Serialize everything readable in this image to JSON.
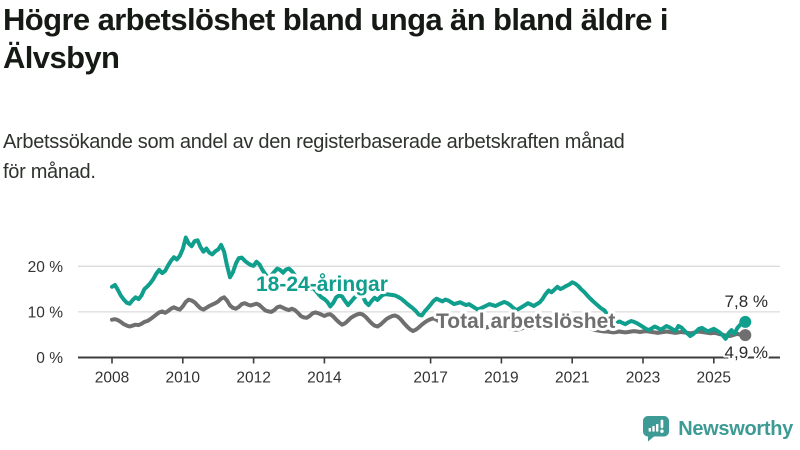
{
  "header": {
    "title_lines": [
      "Högre arbetslöshet bland unga än bland äldre i",
      "Älvsbyn"
    ],
    "subtitle_lines": [
      "Arbetssökande som andel av den registerbaserade arbetskraften månad",
      "för månad."
    ]
  },
  "footer": {
    "brand": "Newsworthy",
    "brand_color": "#3d9a94",
    "logo_icon": "speech-bubble-bar-chart-exclamation"
  },
  "chart_data": {
    "type": "line",
    "unit": "%",
    "frequency": "monthly",
    "x_start": "2008-01",
    "x_end": "2025-11",
    "grid": true,
    "y_axis": {
      "range": [
        0,
        28
      ],
      "ticks": [
        {
          "value": 0,
          "label": "0 %"
        },
        {
          "value": 10,
          "label": "10 %"
        },
        {
          "value": 20,
          "label": "20 %"
        }
      ]
    },
    "x_axis": {
      "tick_labels": [
        "2008",
        "2010",
        "2012",
        "2014",
        "2017",
        "2019",
        "2021",
        "2023",
        "2025"
      ]
    },
    "series": [
      {
        "id": "youth",
        "name": "18-24-åringar",
        "color": "#109e8d",
        "end_label": "7,8 %",
        "end_value": 7.8,
        "values": [
          15.5,
          15.9,
          14.8,
          13.6,
          12.7,
          12.0,
          11.8,
          12.6,
          13.2,
          12.8,
          13.6,
          15.0,
          15.6,
          16.3,
          17.2,
          18.4,
          19.2,
          18.5,
          19.0,
          20.2,
          21.2,
          22.0,
          21.5,
          22.3,
          23.8,
          26.3,
          25.0,
          24.4,
          25.5,
          25.7,
          24.2,
          23.2,
          23.9,
          23.0,
          22.6,
          23.3,
          23.7,
          24.7,
          23.2,
          20.2,
          17.6,
          18.7,
          20.6,
          21.8,
          21.9,
          21.2,
          20.7,
          20.3,
          20.1,
          21.0,
          20.4,
          19.2,
          18.2,
          17.6,
          18.0,
          18.8,
          19.5,
          19.2,
          18.6,
          19.3,
          19.5,
          18.9,
          18.0,
          16.9,
          15.8,
          15.0,
          14.5,
          14.9,
          15.3,
          14.7,
          13.9,
          13.2,
          12.8,
          12.2,
          11.2,
          12.0,
          13.2,
          13.6,
          13.4,
          12.4,
          11.5,
          12.2,
          13.0,
          13.6,
          13.9,
          13.4,
          12.1,
          11.5,
          12.4,
          13.1,
          12.6,
          13.3,
          13.8,
          13.9,
          13.8,
          13.7,
          13.6,
          13.3,
          12.9,
          12.4,
          11.8,
          11.3,
          10.8,
          10.2,
          9.4,
          9.2,
          10.1,
          10.8,
          11.6,
          12.4,
          12.9,
          12.6,
          12.3,
          12.7,
          12.5,
          12.1,
          11.7,
          11.9,
          12.1,
          11.8,
          11.5,
          11.7,
          11.3,
          10.9,
          10.5,
          10.8,
          11.1,
          11.4,
          11.7,
          11.5,
          11.3,
          11.6,
          11.9,
          12.2,
          11.9,
          11.5,
          10.9,
          10.4,
          10.7,
          11.1,
          11.5,
          11.9,
          11.6,
          11.3,
          11.7,
          12.1,
          12.9,
          13.9,
          14.7,
          14.3,
          14.9,
          15.5,
          15.0,
          15.3,
          15.7,
          16.0,
          16.5,
          16.2,
          15.7,
          15.0,
          14.4,
          13.7,
          13.0,
          12.4,
          11.8,
          11.2,
          10.7,
          10.3,
          9.2,
          8.1,
          7.5,
          7.7,
          7.9,
          7.6,
          7.3,
          7.7,
          8.0,
          7.8,
          7.5,
          7.1,
          6.7,
          6.3,
          6.0,
          6.4,
          6.8,
          6.5,
          6.1,
          6.5,
          6.9,
          6.6,
          6.2,
          5.8,
          6.9,
          6.6,
          5.9,
          5.3,
          4.7,
          5.1,
          5.7,
          6.3,
          6.5,
          6.1,
          5.7,
          6.0,
          6.3,
          5.9,
          5.5,
          4.9,
          4.1,
          5.3,
          6.0,
          5.2,
          6.5,
          7.2,
          7.8
        ]
      },
      {
        "id": "total",
        "name": "Total arbetslöshet",
        "color": "#6f6f6f",
        "end_label": "4,9 %",
        "end_value": 4.9,
        "values": [
          8.3,
          8.4,
          8.2,
          7.8,
          7.3,
          7.0,
          6.8,
          7.0,
          7.2,
          7.1,
          7.4,
          7.8,
          8.0,
          8.4,
          8.9,
          9.4,
          9.9,
          10.1,
          9.8,
          10.2,
          10.7,
          11.0,
          10.7,
          10.5,
          11.2,
          12.2,
          12.7,
          12.5,
          12.1,
          11.4,
          10.8,
          10.5,
          10.9,
          11.3,
          11.6,
          11.9,
          12.3,
          12.9,
          13.2,
          12.5,
          11.4,
          10.9,
          10.7,
          11.1,
          11.7,
          11.9,
          11.6,
          11.4,
          11.6,
          11.8,
          11.5,
          10.9,
          10.3,
          10.1,
          10.0,
          10.4,
          11.0,
          11.2,
          10.9,
          10.6,
          10.4,
          10.7,
          10.4,
          9.8,
          9.1,
          8.8,
          8.7,
          9.1,
          9.7,
          9.9,
          9.7,
          9.4,
          9.1,
          9.4,
          9.5,
          9.0,
          8.3,
          7.7,
          7.2,
          7.5,
          8.1,
          8.7,
          9.1,
          9.4,
          9.6,
          9.4,
          8.9,
          8.2,
          7.5,
          7.0,
          6.8,
          7.2,
          7.8,
          8.4,
          8.8,
          9.1,
          9.2,
          8.9,
          8.3,
          7.5,
          6.8,
          6.2,
          5.8,
          6.1,
          6.6,
          7.2,
          7.7,
          8.1,
          8.4,
          8.6,
          8.3,
          7.9,
          7.6,
          7.4,
          7.3,
          7.5,
          7.7,
          7.6,
          7.4,
          7.2,
          7.1,
          7.2,
          7.0,
          6.8,
          6.6,
          6.5,
          6.4,
          6.6,
          6.8,
          6.7,
          6.6,
          6.5,
          6.6,
          6.7,
          6.6,
          6.4,
          6.2,
          6.1,
          6.2,
          6.4,
          6.6,
          6.7,
          6.6,
          6.5,
          6.7,
          6.9,
          7.3,
          7.7,
          8.0,
          7.9,
          7.8,
          7.9,
          7.7,
          7.6,
          7.5,
          7.4,
          7.5,
          7.4,
          7.2,
          7.0,
          6.8,
          6.6,
          6.4,
          6.2,
          6.0,
          5.9,
          5.8,
          5.7,
          5.7,
          5.6,
          5.5,
          5.6,
          5.7,
          5.6,
          5.5,
          5.6,
          5.7,
          5.8,
          5.7,
          5.6,
          5.7,
          5.8,
          5.7,
          5.6,
          5.5,
          5.4,
          5.5,
          5.6,
          5.7,
          5.6,
          5.5,
          5.4,
          5.5,
          5.6,
          5.5,
          5.4,
          5.3,
          5.4,
          5.6,
          5.7,
          5.6,
          5.5,
          5.4,
          5.3,
          5.4,
          5.3,
          5.1,
          5.0,
          4.8,
          4.7,
          4.8,
          5.0,
          5.2,
          5.0,
          4.9
        ]
      }
    ]
  }
}
